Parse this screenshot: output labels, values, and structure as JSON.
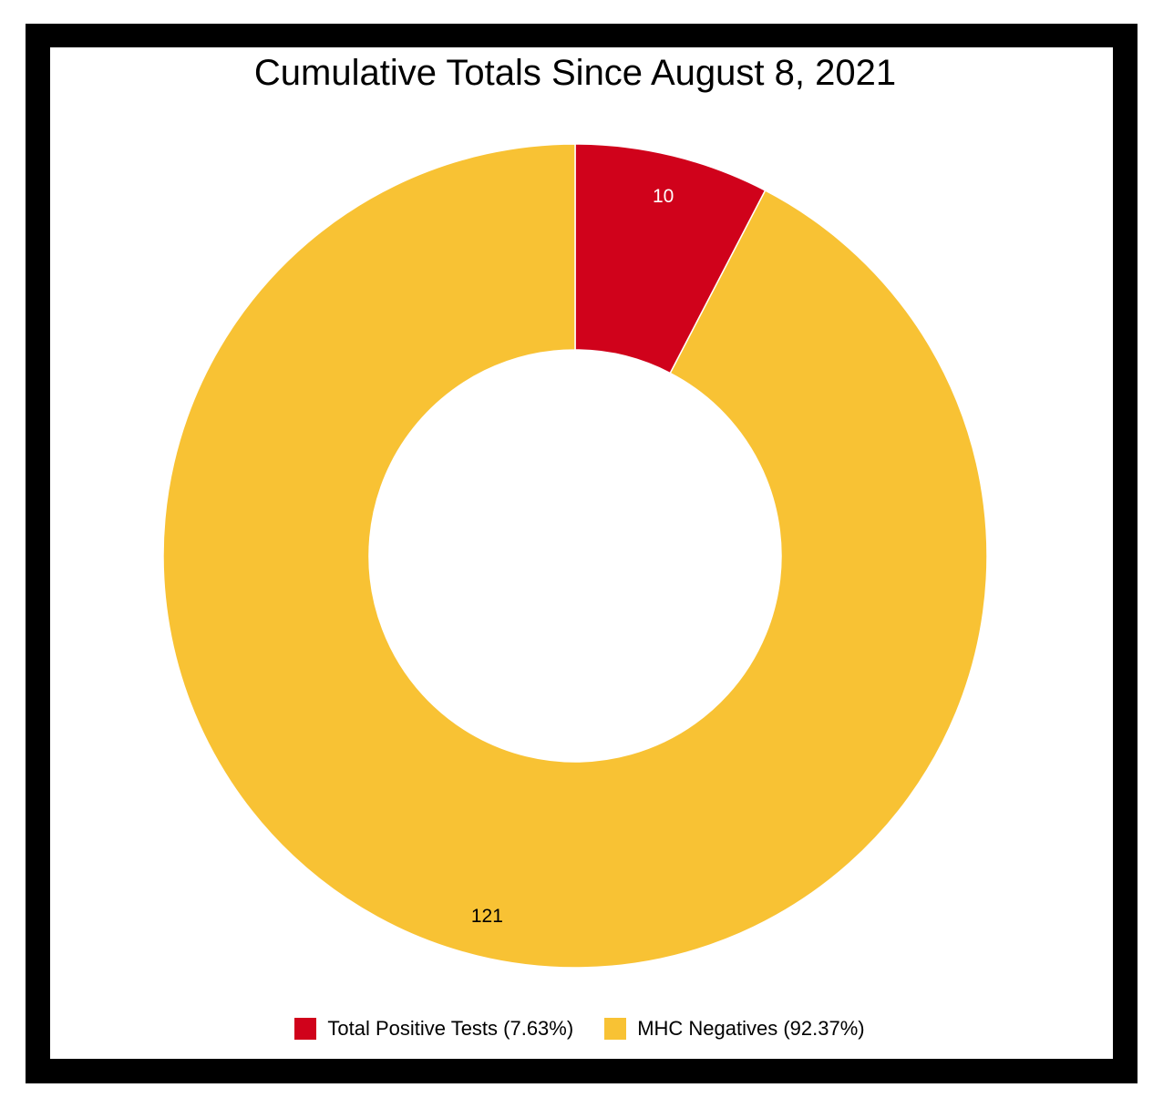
{
  "chart_data": {
    "type": "pie",
    "variant": "donut",
    "title": "Cumulative Totals Since August 8, 2021",
    "slices": [
      {
        "label": "Total Positive Tests",
        "value": 10,
        "percent": 7.63,
        "legend_text": "Total Positive Tests (7.63%)",
        "color": "#d0021b",
        "label_color": "#ffffff"
      },
      {
        "label": "MHC Negatives",
        "value": 121,
        "percent": 92.37,
        "legend_text": "MHC Negatives (92.37%)",
        "color": "#f8c234",
        "label_color": "#000000"
      }
    ],
    "legend_position": "bottom",
    "start_angle": "top",
    "direction": "clockwise"
  },
  "colors": {
    "frame": "#000000",
    "background": "#ffffff"
  }
}
